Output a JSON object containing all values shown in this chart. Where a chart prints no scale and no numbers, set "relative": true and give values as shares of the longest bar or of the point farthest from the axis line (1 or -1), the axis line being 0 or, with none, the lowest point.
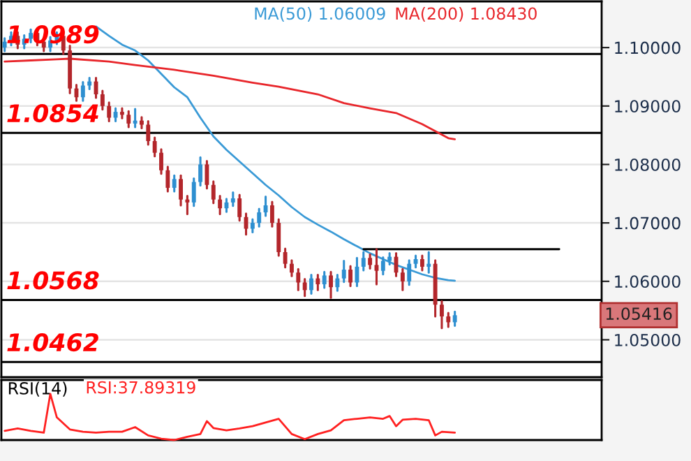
{
  "chart_data": [
    {
      "type": "candlestick",
      "legend": "top left",
      "grid": "y",
      "tick_labels": "y",
      "categories": [
        null,
        null,
        null,
        null,
        null,
        null,
        null,
        null,
        null,
        null,
        null,
        null,
        null,
        null,
        null,
        null,
        null,
        null,
        null,
        null,
        null,
        null,
        null,
        null,
        null,
        null,
        null,
        null,
        null,
        null,
        null,
        null,
        null,
        null,
        null,
        null,
        null,
        null,
        null,
        null,
        null,
        null,
        null,
        null,
        null,
        null,
        null,
        null,
        null,
        null,
        null,
        null,
        null,
        null,
        null,
        null,
        null,
        null,
        null,
        null,
        null,
        null,
        null,
        null,
        null,
        null,
        null,
        null,
        null,
        null,
        null,
        null,
        null,
        null,
        null,
        null,
        null,
        null,
        null,
        null,
        null,
        null,
        null,
        null,
        null,
        null,
        null,
        null,
        null,
        null,
        null,
        null
      ],
      "ohlc": [
        [
          1.1,
          1.1016,
          1.0994,
          1.101
        ],
        [
          1.101,
          1.1026,
          1.1004,
          1.102
        ],
        [
          1.102,
          1.1026,
          1.0999,
          1.1005
        ],
        [
          1.1005,
          1.1021,
          1.0999,
          1.1015
        ],
        [
          1.1015,
          1.1031,
          1.1009,
          1.1025
        ],
        [
          1.1025,
          1.1031,
          1.1004,
          1.101
        ],
        [
          1.101,
          1.1016,
          1.0994,
          1.1
        ],
        [
          1.1,
          1.1018,
          1.0994,
          1.1012
        ],
        [
          1.1012,
          1.1026,
          1.1006,
          1.102
        ],
        [
          1.102,
          1.1026,
          1.0989,
          1.0995
        ],
        [
          1.0995,
          1.1003,
          1.0922,
          1.093
        ],
        [
          1.093,
          1.0936,
          1.0909,
          1.0915
        ],
        [
          1.0915,
          1.0941,
          1.0909,
          1.0935
        ],
        [
          1.0935,
          1.0948,
          1.0929,
          1.0942
        ],
        [
          1.0942,
          1.0948,
          1.0914,
          1.092
        ],
        [
          1.092,
          1.0926,
          1.0894,
          1.09
        ],
        [
          1.09,
          1.0906,
          1.0874,
          1.088
        ],
        [
          1.088,
          1.0896,
          1.0874,
          1.089
        ],
        [
          1.089,
          1.0896,
          1.0879,
          1.0885
        ],
        [
          1.0885,
          1.0891,
          1.0864,
          1.087
        ],
        [
          1.087,
          1.0895,
          1.0864,
          1.0875
        ],
        [
          1.0875,
          1.0881,
          1.0862,
          1.0868
        ],
        [
          1.0868,
          1.0874,
          1.0834,
          1.084
        ],
        [
          1.084,
          1.0846,
          1.0814,
          1.082
        ],
        [
          1.082,
          1.0826,
          1.0784,
          1.079
        ],
        [
          1.079,
          1.0796,
          1.0754,
          1.076
        ],
        [
          1.076,
          1.0781,
          1.0754,
          1.0775
        ],
        [
          1.0775,
          1.0781,
          1.073,
          1.074
        ],
        [
          1.074,
          1.0746,
          1.0715,
          1.0735
        ],
        [
          1.0735,
          1.0776,
          1.0729,
          1.077
        ],
        [
          1.077,
          1.0812,
          1.0764,
          1.08
        ],
        [
          1.08,
          1.0806,
          1.0759,
          1.0765
        ],
        [
          1.0765,
          1.0771,
          1.0734,
          1.074
        ],
        [
          1.074,
          1.0746,
          1.0715,
          1.0725
        ],
        [
          1.0725,
          1.0741,
          1.0719,
          1.0735
        ],
        [
          1.0735,
          1.0752,
          1.0729,
          1.0742
        ],
        [
          1.0742,
          1.0748,
          1.0704,
          1.071
        ],
        [
          1.071,
          1.0716,
          1.068,
          1.069
        ],
        [
          1.069,
          1.0706,
          1.0684,
          1.07
        ],
        [
          1.07,
          1.0724,
          1.0694,
          1.0718
        ],
        [
          1.0718,
          1.0745,
          1.0712,
          1.073
        ],
        [
          1.073,
          1.0736,
          1.0694,
          1.07
        ],
        [
          1.07,
          1.0706,
          1.0644,
          1.065
        ],
        [
          1.065,
          1.0656,
          1.0624,
          1.063
        ],
        [
          1.063,
          1.0636,
          1.0609,
          1.0615
        ],
        [
          1.0615,
          1.0621,
          1.0585,
          1.0598
        ],
        [
          1.0598,
          1.0604,
          1.0575,
          1.0585
        ],
        [
          1.0585,
          1.0611,
          1.0579,
          1.0605
        ],
        [
          1.0605,
          1.0611,
          1.0585,
          1.0595
        ],
        [
          1.0595,
          1.0616,
          1.0589,
          1.061
        ],
        [
          1.061,
          1.0616,
          1.0572,
          1.059
        ],
        [
          1.059,
          1.0611,
          1.0584,
          1.0605
        ],
        [
          1.0605,
          1.0635,
          1.0599,
          1.062
        ],
        [
          1.062,
          1.0626,
          1.0592,
          1.0598
        ],
        [
          1.0598,
          1.064,
          1.0592,
          1.0625
        ],
        [
          1.0625,
          1.065,
          1.0619,
          1.064
        ],
        [
          1.064,
          1.0646,
          1.0622,
          1.0628
        ],
        [
          1.0628,
          1.0655,
          1.0595,
          1.0618
        ],
        [
          1.0618,
          1.0641,
          1.0612,
          1.0635
        ],
        [
          1.0635,
          1.0648,
          1.0629,
          1.0642
        ],
        [
          1.0642,
          1.0648,
          1.0609,
          1.0615
        ],
        [
          1.0615,
          1.0621,
          1.0585,
          1.06
        ],
        [
          1.06,
          1.0636,
          1.0594,
          1.063
        ],
        [
          1.063,
          1.0644,
          1.0624,
          1.0638
        ],
        [
          1.0638,
          1.0644,
          1.0619,
          1.0625
        ],
        [
          1.0625,
          1.065,
          1.0615,
          1.063
        ],
        [
          1.063,
          1.0636,
          1.054,
          1.056
        ],
        [
          1.056,
          1.0566,
          1.052,
          1.054
        ],
        [
          1.054,
          1.0546,
          1.0522,
          1.053
        ],
        [
          1.053,
          1.0548,
          1.0524,
          1.0542
        ],
        null,
        null,
        null,
        null,
        null,
        null,
        null,
        null,
        null,
        null,
        null,
        null,
        null,
        null,
        null,
        null,
        null,
        null,
        null,
        null,
        null,
        null
      ],
      "colors": [
        "#2e8fd0",
        "#2e8fd0",
        "#b3262b",
        "#2e8fd0",
        "#2e8fd0",
        "#b3262b",
        "#b3262b",
        "#2e8fd0",
        "#2e8fd0",
        "#b3262b",
        "#b3262b",
        "#b3262b",
        "#2e8fd0",
        "#2e8fd0",
        "#b3262b",
        "#b3262b",
        "#b3262b",
        "#2e8fd0",
        "#b3262b",
        "#b3262b",
        "#2e8fd0",
        "#b3262b",
        "#b3262b",
        "#b3262b",
        "#b3262b",
        "#b3262b",
        "#2e8fd0",
        "#b3262b",
        "#b3262b",
        "#2e8fd0",
        "#2e8fd0",
        "#b3262b",
        "#b3262b",
        "#b3262b",
        "#2e8fd0",
        "#2e8fd0",
        "#b3262b",
        "#b3262b",
        "#2e8fd0",
        "#2e8fd0",
        "#2e8fd0",
        "#b3262b",
        "#b3262b",
        "#b3262b",
        "#b3262b",
        "#b3262b",
        "#b3262b",
        "#2e8fd0",
        "#b3262b",
        "#2e8fd0",
        "#b3262b",
        "#2e8fd0",
        "#2e8fd0",
        "#b3262b",
        "#2e8fd0",
        "#2e8fd0",
        "#b3262b",
        "#b3262b",
        "#2e8fd0",
        "#2e8fd0",
        "#b3262b",
        "#b3262b",
        "#2e8fd0",
        "#2e8fd0",
        "#b3262b",
        "#2e8fd0",
        "#b3262b",
        "#b3262b",
        "#b3262b",
        "#2e8fd0",
        null,
        null,
        null,
        null,
        null,
        null,
        null,
        null,
        null,
        null,
        null,
        null,
        null,
        null,
        null,
        null,
        null,
        null,
        null,
        null,
        null,
        null
      ],
      "series": [
        {
          "type": "line",
          "name": "MA(50) 1.06009",
          "color": "#3a9ad6",
          "values": [
            null,
            null,
            null,
            null,
            null,
            null,
            null,
            null,
            null,
            null,
            null,
            null,
            null,
            null,
            1.1036,
            null,
            1.102,
            null,
            1.1005,
            null,
            1.0995,
            null,
            1.0978,
            null,
            1.0955,
            null,
            1.0932,
            null,
            1.0915,
            null,
            1.088,
            null,
            1.0848,
            null,
            1.0825,
            null,
            1.0805,
            null,
            1.0785,
            null,
            1.0765,
            null,
            1.0747,
            null,
            1.0727,
            null,
            1.071,
            null,
            1.0697,
            null,
            1.0685,
            null,
            1.0672,
            null,
            1.066,
            null,
            1.0648,
            null,
            1.0638,
            null,
            1.0628,
            null,
            1.062,
            null,
            1.0612,
            null,
            1.0606,
            null,
            1.0602,
            1.0601,
            null,
            null,
            null,
            null,
            null,
            null,
            null,
            null,
            null,
            null,
            null,
            null,
            null,
            null,
            null,
            null,
            null,
            null,
            null,
            null,
            null,
            null
          ]
        },
        {
          "type": "line",
          "name": "MA(200) 1.08430",
          "color": "#e8262b",
          "values": [
            1.0976,
            null,
            null,
            null,
            1.0978,
            null,
            null,
            null,
            1.098,
            null,
            1.0981,
            null,
            null,
            null,
            null,
            null,
            1.0976,
            null,
            null,
            null,
            1.097,
            null,
            null,
            null,
            null,
            null,
            1.0962,
            null,
            null,
            null,
            null,
            null,
            1.0952,
            null,
            null,
            null,
            null,
            null,
            1.094,
            null,
            null,
            null,
            1.0933,
            null,
            null,
            null,
            null,
            null,
            1.092,
            null,
            null,
            null,
            1.0905,
            null,
            null,
            null,
            1.0896,
            null,
            null,
            null,
            1.0888,
            null,
            null,
            null,
            1.0869,
            null,
            null,
            null,
            1.0845,
            1.0843,
            null,
            null,
            null,
            null,
            null,
            null,
            null,
            null,
            null,
            null,
            null,
            null,
            null,
            null,
            null,
            null,
            null,
            null,
            null,
            null,
            null,
            null
          ]
        },
        {
          "type": "line",
          "color": "#000000",
          "values": [
            null,
            null,
            null,
            null,
            null,
            null,
            null,
            null,
            null,
            null,
            null,
            null,
            null,
            null,
            null,
            null,
            null,
            null,
            null,
            null,
            null,
            null,
            null,
            null,
            null,
            null,
            null,
            null,
            null,
            null,
            null,
            null,
            null,
            null,
            null,
            null,
            null,
            null,
            null,
            null,
            null,
            null,
            null,
            null,
            null,
            null,
            null,
            null,
            null,
            null,
            null,
            null,
            null,
            null,
            null,
            1.0655,
            null,
            null,
            null,
            null,
            null,
            null,
            null,
            null,
            null,
            null,
            null,
            null,
            null,
            null,
            null,
            null,
            null,
            null,
            null,
            null,
            null,
            null,
            null,
            null,
            null,
            null,
            null,
            null,
            null,
            1.0655,
            null,
            null,
            null,
            null,
            null,
            null
          ]
        }
      ],
      "ylim": [
        1.0436,
        1.1079
      ],
      "yticks": [
        {
          "value": 1.05,
          "label": "1.05000"
        },
        {
          "value": 1.06,
          "label": "1.06000"
        },
        {
          "value": 1.07,
          "label": "1.07000"
        },
        {
          "value": 1.08,
          "label": "1.08000"
        },
        {
          "value": 1.09,
          "label": "1.09000"
        },
        {
          "value": 1.1,
          "label": "1.10000"
        }
      ],
      "ref_lines": [
        {
          "axis": "y",
          "value": 1.0989,
          "label": "1.0989",
          "color": "#000000"
        },
        {
          "axis": "y",
          "value": 1.0854,
          "label": "1.0854",
          "color": "#000000"
        },
        {
          "axis": "y",
          "value": 1.0568,
          "label": "1.0568",
          "color": "#000000"
        },
        {
          "axis": "y",
          "value": 1.0462,
          "label": "1.0462",
          "color": "#000000"
        }
      ],
      "annotations": [
        "1.05416"
      ]
    },
    {
      "type": "line",
      "title": "RSI(14)",
      "relative": true,
      "tick_labels": false,
      "legend": "top left",
      "categories": [
        null,
        null,
        null,
        null,
        null,
        null,
        null,
        null,
        null,
        null,
        null,
        null,
        null,
        null,
        null,
        null,
        null,
        null,
        null,
        null,
        null,
        null,
        null,
        null,
        null,
        null,
        null,
        null,
        null,
        null,
        null,
        null,
        null,
        null,
        null,
        null,
        null,
        null,
        null,
        null,
        null,
        null,
        null,
        null,
        null,
        null,
        null,
        null,
        null,
        null,
        null,
        null,
        null,
        null,
        null,
        null,
        null,
        null,
        null,
        null,
        null,
        null,
        null,
        null,
        null,
        null,
        null,
        null,
        null,
        null,
        null,
        null,
        null,
        null,
        null,
        null,
        null,
        null,
        null,
        null,
        null,
        null,
        null,
        null,
        null,
        null,
        null,
        null,
        null,
        null,
        null,
        null
      ],
      "series": [
        {
          "name": "RSI:37.89319",
          "color": "#ff2020",
          "values": [
            0.2,
            null,
            0.25,
            null,
            0.2,
            null,
            0.16,
            1.0,
            0.49,
            null,
            0.23,
            null,
            0.18,
            null,
            0.16,
            null,
            0.18,
            null,
            0.18,
            null,
            0.28,
            null,
            0.1,
            null,
            0.03,
            null,
            0,
            null,
            0.07,
            null,
            0.13,
            0.41,
            0.26,
            null,
            0.21,
            null,
            0.25,
            null,
            0.3,
            null,
            0.38,
            null,
            0.46,
            null,
            0.13,
            null,
            0.02,
            null,
            0.13,
            null,
            0.21,
            null,
            0.43,
            null,
            0.46,
            null,
            0.49,
            null,
            0.46,
            0.52,
            0.3,
            0.44,
            null,
            0.46,
            null,
            0.43,
            0.1,
            0.18,
            null,
            0.16,
            null,
            null,
            null,
            null,
            null,
            null,
            null,
            null,
            null,
            null,
            null,
            null,
            null,
            null,
            null,
            null,
            null,
            null,
            null,
            null,
            null,
            null
          ]
        }
      ]
    }
  ]
}
